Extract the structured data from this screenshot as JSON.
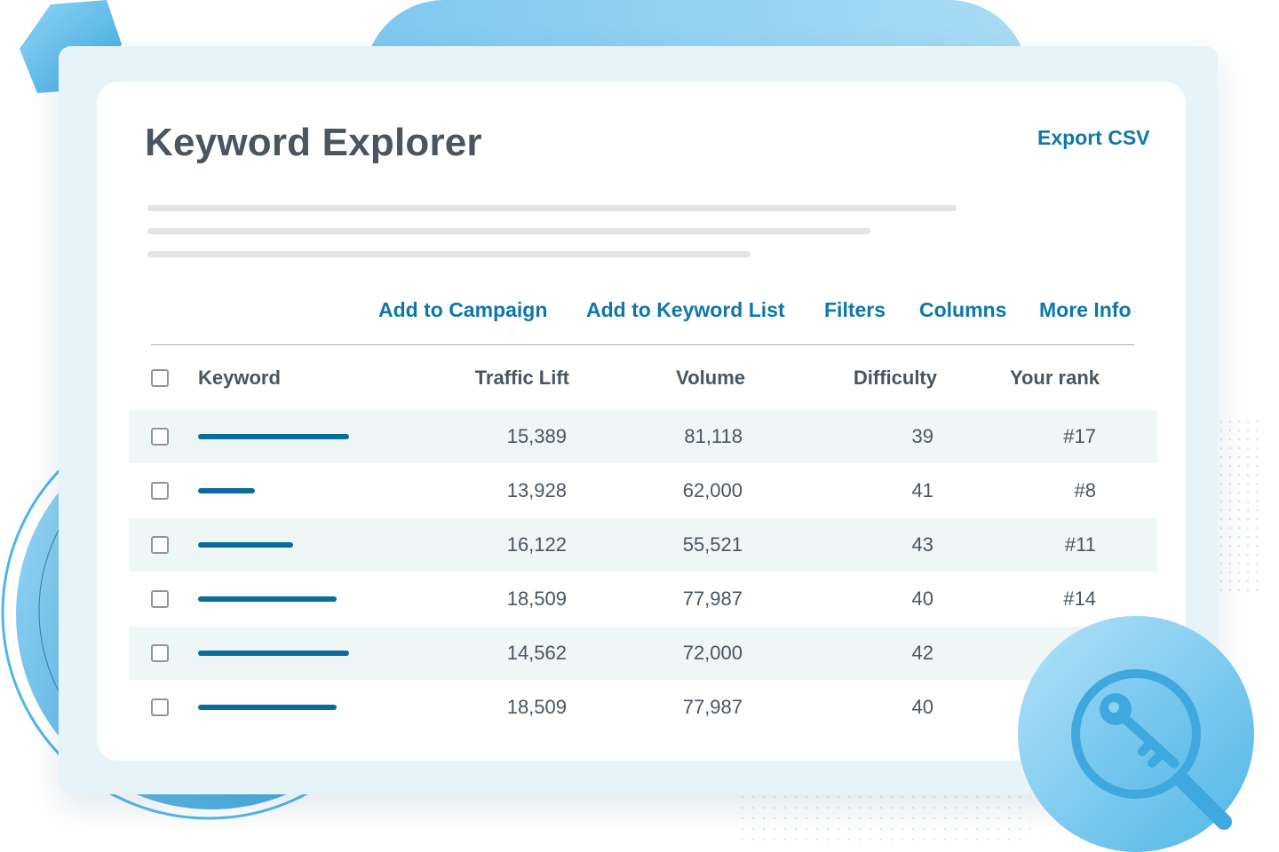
{
  "title": "Keyword Explorer",
  "export_label": "Export CSV",
  "toolbar": {
    "add_to_campaign": "Add to Campaign",
    "add_to_keyword_list": "Add to Keyword List",
    "filters": "Filters",
    "columns": "Columns",
    "more_info": "More Info"
  },
  "table": {
    "headers": {
      "keyword": "Keyword",
      "traffic_lift": "Traffic Lift",
      "volume": "Volume",
      "difficulty": "Difficulty",
      "rank": "Your rank"
    },
    "rows": [
      {
        "traffic_lift": "15,389",
        "volume": "81,118",
        "difficulty": "39",
        "rank": "#17"
      },
      {
        "traffic_lift": "13,928",
        "volume": "62,000",
        "difficulty": "41",
        "rank": "#8"
      },
      {
        "traffic_lift": "16,122",
        "volume": "55,521",
        "difficulty": "43",
        "rank": "#11"
      },
      {
        "traffic_lift": "18,509",
        "volume": "77,987",
        "difficulty": "40",
        "rank": "#14"
      },
      {
        "traffic_lift": "14,562",
        "volume": "72,000",
        "difficulty": "42",
        "rank": ""
      },
      {
        "traffic_lift": "18,509",
        "volume": "77,987",
        "difficulty": "40",
        "rank": ""
      }
    ]
  },
  "colors": {
    "accent": "#0f78a8",
    "keyword_bar": "#0b6b9c",
    "text": "#4a5560",
    "row_stripe": "#eef6f6",
    "frame": "#e6f3f9",
    "decor_blue": "#4fb6e8"
  },
  "icons": {
    "badge": "key-magnifier-icon",
    "checkbox": "checkbox-icon"
  }
}
